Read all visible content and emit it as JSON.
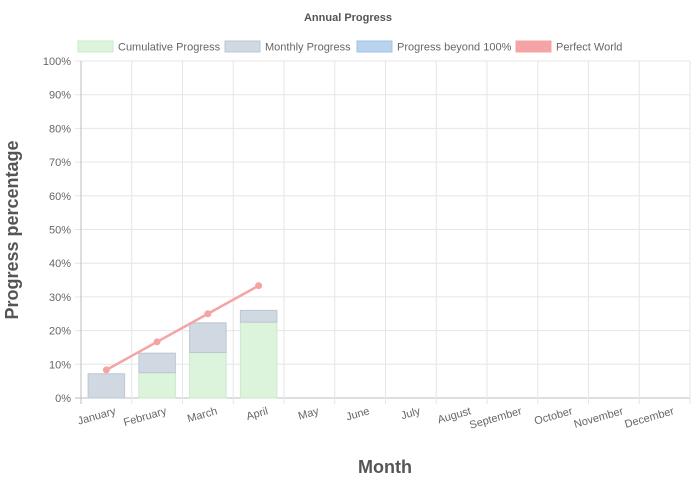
{
  "chart_data": {
    "type": "bar",
    "title": "Annual Progress",
    "xlabel": "Month",
    "ylabel": "Progress percentage",
    "categories": [
      "January",
      "February",
      "March",
      "April",
      "May",
      "June",
      "July",
      "August",
      "September",
      "October",
      "November",
      "December"
    ],
    "yticks": [
      "0%",
      "10%",
      "20%",
      "30%",
      "40%",
      "50%",
      "60%",
      "70%",
      "80%",
      "90%",
      "100%"
    ],
    "ylim": [
      0,
      100
    ],
    "stacked": true,
    "legend_position": "top",
    "grid": true,
    "series": [
      {
        "name": "Cumulative Progress",
        "kind": "bar",
        "color": "#dcf3dc",
        "border": "#c9ebc9",
        "values": [
          0,
          7.5,
          13.5,
          22.5,
          null,
          null,
          null,
          null,
          null,
          null,
          null,
          null
        ]
      },
      {
        "name": "Monthly Progress",
        "kind": "bar",
        "color": "#d0d8e2",
        "border": "#bcc7d3",
        "values": [
          7.2,
          5.8,
          8.8,
          3.5,
          null,
          null,
          null,
          null,
          null,
          null,
          null,
          null
        ]
      },
      {
        "name": "Progress beyond 100%",
        "kind": "bar",
        "color": "#b9d3ee",
        "border": "#9fc2e6",
        "values": [
          0,
          0,
          0,
          0,
          null,
          null,
          null,
          null,
          null,
          null,
          null,
          null
        ]
      },
      {
        "name": "Perfect World",
        "kind": "line",
        "color": "#f4a4a4",
        "values": [
          8.33,
          16.67,
          25.0,
          33.33,
          null,
          null,
          null,
          null,
          null,
          null,
          null,
          null
        ]
      }
    ]
  }
}
